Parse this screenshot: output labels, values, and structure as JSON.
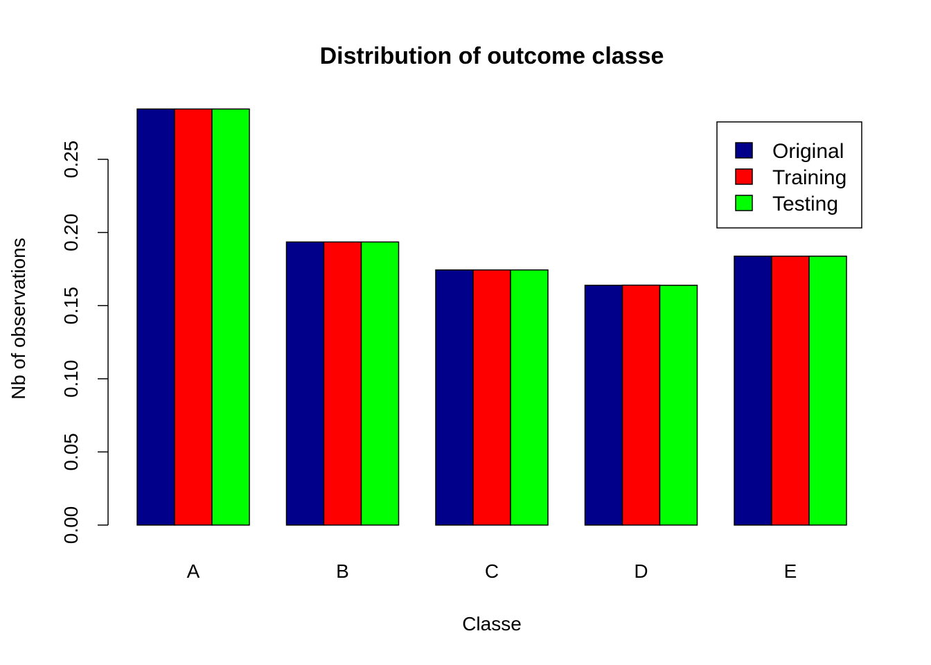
{
  "chart_data": {
    "type": "bar",
    "title": "Distribution of outcome classe",
    "xlabel": "Classe",
    "ylabel": "Nb of observations",
    "categories": [
      "A",
      "B",
      "C",
      "D",
      "E"
    ],
    "series": [
      {
        "name": "Original",
        "color": "#00008B",
        "values": [
          0.2844,
          0.1935,
          0.1744,
          0.1639,
          0.1838
        ]
      },
      {
        "name": "Training",
        "color": "#FF0000",
        "values": [
          0.2844,
          0.1935,
          0.1744,
          0.164,
          0.1838
        ]
      },
      {
        "name": "Testing",
        "color": "#00FF00",
        "values": [
          0.2844,
          0.1935,
          0.1744,
          0.1639,
          0.1838
        ]
      }
    ],
    "ylim": [
      0,
      0.285
    ],
    "yticks": [
      "0.00",
      "0.05",
      "0.10",
      "0.15",
      "0.20",
      "0.25"
    ],
    "grid": false,
    "legend_position": "top-right"
  }
}
